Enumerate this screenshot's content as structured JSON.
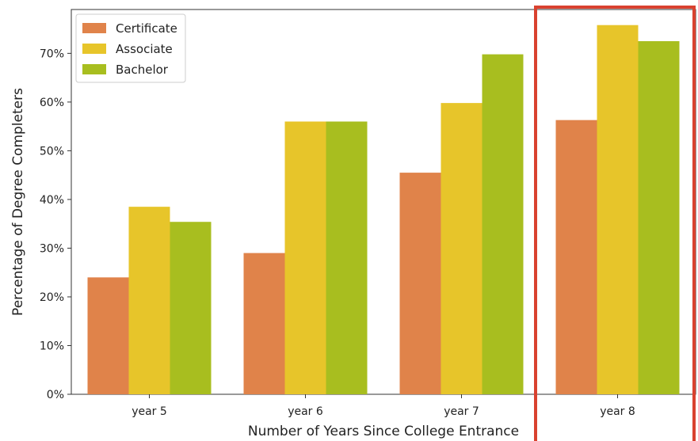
{
  "chart_data": {
    "type": "bar",
    "title": "",
    "xlabel": "Number of Years Since College Entrance",
    "ylabel": "Percentage of Degree Completers",
    "categories": [
      "year 5",
      "year 6",
      "year 7",
      "year 8"
    ],
    "series": [
      {
        "name": "Certificate",
        "color": "#E0834A",
        "values": [
          24,
          29,
          45.5,
          56.3
        ]
      },
      {
        "name": "Associate",
        "color": "#E7C52A",
        "values": [
          38.5,
          56,
          59.8,
          75.8
        ]
      },
      {
        "name": "Bachelor",
        "color": "#A8BE1F",
        "values": [
          35.4,
          56,
          69.8,
          72.5
        ]
      }
    ],
    "ylim": [
      0,
      79
    ],
    "yticks": [
      0,
      10,
      20,
      30,
      40,
      50,
      60,
      70
    ],
    "ytick_labels": [
      "0%",
      "10%",
      "20%",
      "30%",
      "40%",
      "50%",
      "60%",
      "70%"
    ],
    "grid": false,
    "legend": "top-left",
    "annotation": {
      "type": "highlight-box",
      "category": "year 8",
      "color": "#D9412F"
    }
  }
}
